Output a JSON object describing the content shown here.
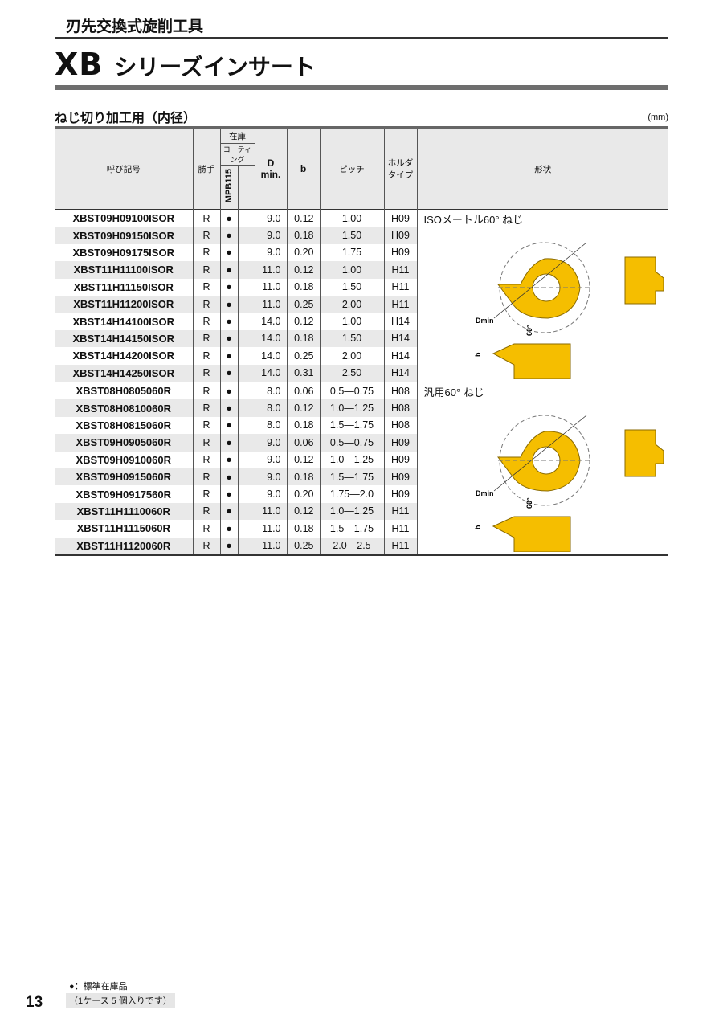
{
  "header": {
    "category": "刃先交換式旋削工具",
    "series": "XB",
    "series_sub": "シリーズインサート"
  },
  "section": {
    "title": "ねじ切り加工用（内径）",
    "unit": "(mm)"
  },
  "columns": {
    "code": "呼び記号",
    "hand": "勝手",
    "stock": "在庫",
    "coating": "コーティング",
    "grade": "MPB115",
    "d": "D",
    "d2": "min.",
    "b": "b",
    "pitch": "ピッチ",
    "holder1": "ホルダ",
    "holder2": "タイプ",
    "shape": "形状"
  },
  "colors": {
    "insert": "#f5be00",
    "header_bg": "#e9e9e9"
  },
  "groups": [
    {
      "shape_label": "ISOメートル60° ねじ",
      "dim_label": "Dmin",
      "angle_label": "60°",
      "b_label": "b",
      "rows": [
        [
          "XBST09H09100ISOR",
          "R",
          "●",
          "9.0",
          "0.12",
          "1.00",
          "H09"
        ],
        [
          "XBST09H09150ISOR",
          "R",
          "●",
          "9.0",
          "0.18",
          "1.50",
          "H09"
        ],
        [
          "XBST09H09175ISOR",
          "R",
          "●",
          "9.0",
          "0.20",
          "1.75",
          "H09"
        ],
        [
          "XBST11H11100ISOR",
          "R",
          "●",
          "11.0",
          "0.12",
          "1.00",
          "H11"
        ],
        [
          "XBST11H11150ISOR",
          "R",
          "●",
          "11.0",
          "0.18",
          "1.50",
          "H11"
        ],
        [
          "XBST11H11200ISOR",
          "R",
          "●",
          "11.0",
          "0.25",
          "2.00",
          "H11"
        ],
        [
          "XBST14H14100ISOR",
          "R",
          "●",
          "14.0",
          "0.12",
          "1.00",
          "H14"
        ],
        [
          "XBST14H14150ISOR",
          "R",
          "●",
          "14.0",
          "0.18",
          "1.50",
          "H14"
        ],
        [
          "XBST14H14200ISOR",
          "R",
          "●",
          "14.0",
          "0.25",
          "2.00",
          "H14"
        ],
        [
          "XBST14H14250ISOR",
          "R",
          "●",
          "14.0",
          "0.31",
          "2.50",
          "H14"
        ]
      ]
    },
    {
      "shape_label": "汎用60° ねじ",
      "dim_label": "Dmin",
      "angle_label": "60°",
      "b_label": "b",
      "rows": [
        [
          "XBST08H0805060R",
          "R",
          "●",
          "8.0",
          "0.06",
          "0.5—0.75",
          "H08"
        ],
        [
          "XBST08H0810060R",
          "R",
          "●",
          "8.0",
          "0.12",
          "1.0—1.25",
          "H08"
        ],
        [
          "XBST08H0815060R",
          "R",
          "●",
          "8.0",
          "0.18",
          "1.5—1.75",
          "H08"
        ],
        [
          "XBST09H0905060R",
          "R",
          "●",
          "9.0",
          "0.06",
          "0.5—0.75",
          "H09"
        ],
        [
          "XBST09H0910060R",
          "R",
          "●",
          "9.0",
          "0.12",
          "1.0—1.25",
          "H09"
        ],
        [
          "XBST09H0915060R",
          "R",
          "●",
          "9.0",
          "0.18",
          "1.5—1.75",
          "H09"
        ],
        [
          "XBST09H0917560R",
          "R",
          "●",
          "9.0",
          "0.20",
          "1.75—2.0",
          "H09"
        ],
        [
          "XBST11H1110060R",
          "R",
          "●",
          "11.0",
          "0.12",
          "1.0—1.25",
          "H11"
        ],
        [
          "XBST11H1115060R",
          "R",
          "●",
          "11.0",
          "0.18",
          "1.5—1.75",
          "H11"
        ],
        [
          "XBST11H1120060R",
          "R",
          "●",
          "11.0",
          "0.25",
          "2.0—2.5",
          "H11"
        ]
      ]
    }
  ],
  "footer": {
    "page": "13",
    "legend": "●：標準在庫品",
    "note": "（1ケース 5 個入りです）"
  }
}
